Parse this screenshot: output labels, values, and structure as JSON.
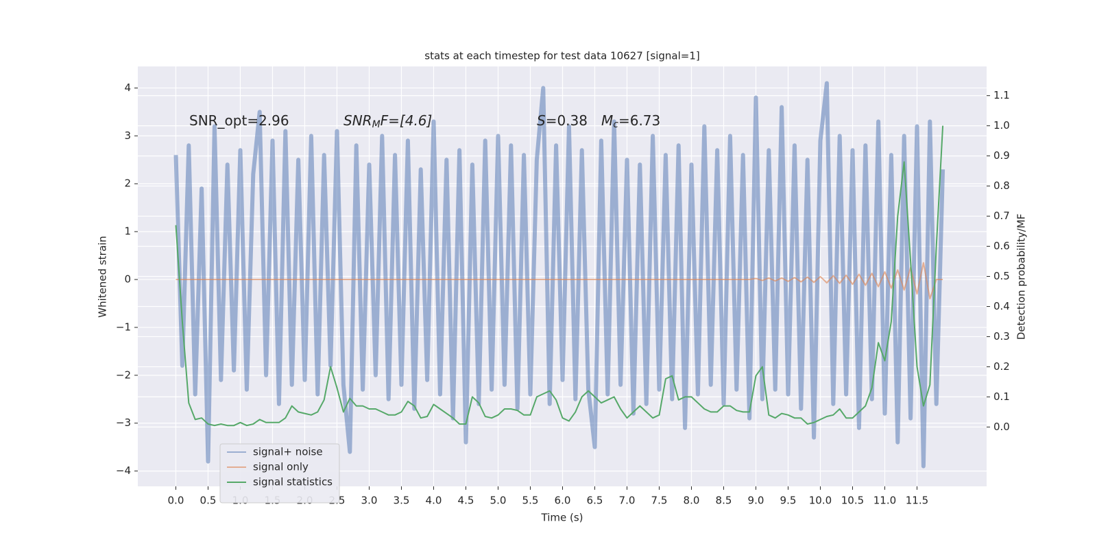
{
  "chart_data": {
    "type": "line",
    "title": "stats at each timestep for test data 10627 [signal=1]",
    "xlabel": "Time (s)",
    "ylabel": "Whitened strain",
    "y2label": "Detection probability/MF",
    "annotations": [
      {
        "text": "SNR_opt=2.96"
      },
      {
        "base": "SNR",
        "sub": "M",
        "rest": "F=[4.6]"
      },
      {
        "base": "S",
        "rest": "=0.38"
      },
      {
        "base": "M",
        "sub": "c",
        "rest": "=6.73"
      }
    ],
    "x": [
      0,
      0.1,
      0.2,
      0.3,
      0.4,
      0.5,
      0.6,
      0.7,
      0.8,
      0.9,
      1,
      1.1,
      1.2,
      1.3,
      1.4,
      1.5,
      1.6,
      1.7,
      1.8,
      1.9,
      2,
      2.1,
      2.2,
      2.3,
      2.4,
      2.5,
      2.6,
      2.7,
      2.8,
      2.9,
      3,
      3.1,
      3.2,
      3.3,
      3.4,
      3.5,
      3.6,
      3.7,
      3.8,
      3.9,
      4,
      4.1,
      4.2,
      4.3,
      4.4,
      4.5,
      4.6,
      4.7,
      4.8,
      4.9,
      5,
      5.1,
      5.2,
      5.3,
      5.4,
      5.5,
      5.6,
      5.7,
      5.8,
      5.9,
      6,
      6.1,
      6.2,
      6.3,
      6.4,
      6.5,
      6.6,
      6.7,
      6.8,
      6.9,
      7,
      7.1,
      7.2,
      7.3,
      7.4,
      7.5,
      7.6,
      7.7,
      7.8,
      7.9,
      8,
      8.1,
      8.2,
      8.3,
      8.4,
      8.5,
      8.6,
      8.7,
      8.8,
      8.9,
      9,
      9.1,
      9.2,
      9.3,
      9.4,
      9.5,
      9.6,
      9.7,
      9.8,
      9.9,
      10,
      10.1,
      10.2,
      10.3,
      10.4,
      10.5,
      10.6,
      10.7,
      10.8,
      10.9,
      11,
      11.1,
      11.2,
      11.3,
      11.4,
      11.5,
      11.6,
      11.7,
      11.8,
      11.9
    ],
    "series": [
      {
        "name": "signal+ noise",
        "color": "#4c72b0",
        "opacity": 0.5,
        "width": 6,
        "values": [
          2.6,
          -1.8,
          2.8,
          -2.4,
          1.9,
          -3.8,
          3.2,
          -2.1,
          2.4,
          -1.9,
          2.7,
          -2.3,
          2.2,
          3.5,
          -2.0,
          2.9,
          -2.6,
          3.1,
          -2.2,
          2.5,
          -2.1,
          3.0,
          -2.4,
          2.6,
          -1.8,
          3.1,
          -2.2,
          -3.6,
          2.8,
          -2.3,
          2.4,
          -2.0,
          3.0,
          -2.5,
          2.6,
          -2.2,
          2.9,
          -2.7,
          2.3,
          -2.1,
          3.3,
          -2.4,
          2.5,
          -2.9,
          2.7,
          -3.4,
          2.4,
          -2.6,
          2.9,
          -2.3,
          3.0,
          -2.2,
          2.8,
          -2.7,
          2.6,
          -2.4,
          2.5,
          4.0,
          -2.6,
          2.8,
          -2.1,
          3.2,
          -2.5,
          2.7,
          -2.3,
          -3.5,
          2.9,
          -2.4,
          3.3,
          -2.2,
          2.5,
          -2.8,
          2.4,
          -2.6,
          3.0,
          -2.3,
          2.6,
          -2.5,
          2.8,
          -3.1,
          2.4,
          -2.4,
          3.2,
          -2.2,
          2.7,
          -2.6,
          3.0,
          -2.3,
          2.6,
          -2.9,
          3.8,
          -2.5,
          2.7,
          -2.3,
          3.6,
          -2.4,
          2.8,
          -2.7,
          2.5,
          -3.3,
          2.9,
          4.1,
          -2.6,
          3.0,
          -2.4,
          2.7,
          -3.1,
          2.8,
          -2.5,
          3.3,
          -2.8,
          2.6,
          -3.4,
          3.0,
          -2.9,
          3.2,
          -3.9,
          3.3,
          -2.6,
          2.3
        ]
      },
      {
        "name": "signal only",
        "color": "#dd8452",
        "opacity": 0.6,
        "width": 2,
        "values": [
          0,
          0,
          0,
          0,
          0,
          0,
          0,
          0,
          0,
          0,
          0,
          0,
          0,
          0,
          0,
          0,
          0,
          0,
          0,
          0,
          0,
          0,
          0,
          0,
          0,
          0,
          0,
          0,
          0,
          0,
          0,
          0,
          0,
          0,
          0,
          0,
          0,
          0,
          0,
          0,
          0,
          0,
          0,
          0,
          0,
          0,
          0,
          0,
          0,
          0,
          0,
          0,
          0,
          0,
          0,
          0,
          0,
          0,
          0,
          0,
          0,
          0,
          0,
          0,
          0,
          0,
          0,
          0,
          0,
          0,
          0,
          0,
          0,
          0,
          0,
          0,
          0,
          0,
          0,
          0,
          0,
          0,
          0,
          0,
          0,
          0,
          0,
          0,
          0,
          0,
          0.02,
          -0.02,
          0.03,
          -0.03,
          0.03,
          -0.04,
          0.04,
          -0.05,
          0.05,
          -0.06,
          0.06,
          -0.07,
          0.08,
          -0.08,
          0.09,
          -0.1,
          0.11,
          -0.12,
          0.13,
          -0.15,
          0.16,
          -0.18,
          0.2,
          -0.22,
          0.25,
          -0.3,
          0.35,
          -0.4,
          0,
          0
        ]
      },
      {
        "name": "signal statistics",
        "color": "#55a868",
        "opacity": 1,
        "width": 2,
        "axis": "y2",
        "values": [
          0.67,
          0.35,
          0.08,
          0.025,
          0.03,
          0.01,
          0.005,
          0.01,
          0.005,
          0.005,
          0.015,
          0.005,
          0.01,
          0.025,
          0.015,
          0.015,
          0.015,
          0.03,
          0.07,
          0.05,
          0.045,
          0.04,
          0.05,
          0.09,
          0.2,
          0.13,
          0.05,
          0.095,
          0.07,
          0.07,
          0.06,
          0.06,
          0.05,
          0.04,
          0.04,
          0.05,
          0.085,
          0.07,
          0.03,
          0.035,
          0.075,
          0.06,
          0.045,
          0.03,
          0.01,
          0.01,
          0.1,
          0.08,
          0.035,
          0.03,
          0.04,
          0.06,
          0.06,
          0.055,
          0.04,
          0.04,
          0.1,
          0.11,
          0.12,
          0.09,
          0.03,
          0.02,
          0.05,
          0.1,
          0.12,
          0.1,
          0.08,
          0.09,
          0.1,
          0.06,
          0.03,
          0.05,
          0.07,
          0.05,
          0.03,
          0.04,
          0.16,
          0.17,
          0.09,
          0.1,
          0.1,
          0.08,
          0.06,
          0.05,
          0.05,
          0.07,
          0.07,
          0.055,
          0.05,
          0.05,
          0.17,
          0.2,
          0.04,
          0.03,
          0.045,
          0.04,
          0.03,
          0.03,
          0.01,
          0.015,
          0.025,
          0.035,
          0.04,
          0.06,
          0.03,
          0.03,
          0.05,
          0.07,
          0.13,
          0.28,
          0.22,
          0.35,
          0.7,
          0.88,
          0.55,
          0.2,
          0.07,
          0.14,
          0.6,
          1.0
        ]
      }
    ],
    "xlim": [
      -0.59,
      12.58
    ],
    "ylim": [
      -4.32,
      4.45
    ],
    "y2lim": [
      -0.197,
      1.197
    ],
    "xticks": [
      {
        "value": 0,
        "label": "0.0"
      },
      {
        "value": 0.5,
        "label": "0.5"
      },
      {
        "value": 1,
        "label": "1.0"
      },
      {
        "value": 1.5,
        "label": "1.5"
      },
      {
        "value": 2,
        "label": "2.0"
      },
      {
        "value": 2.5,
        "label": "2.5"
      },
      {
        "value": 3,
        "label": "3.0"
      },
      {
        "value": 3.5,
        "label": "3.5"
      },
      {
        "value": 4,
        "label": "4.0"
      },
      {
        "value": 4.5,
        "label": "4.5"
      },
      {
        "value": 5,
        "label": "5.0"
      },
      {
        "value": 5.5,
        "label": "5.5"
      },
      {
        "value": 6,
        "label": "6.0"
      },
      {
        "value": 6.5,
        "label": "6.5"
      },
      {
        "value": 7,
        "label": "7.0"
      },
      {
        "value": 7.5,
        "label": "7.5"
      },
      {
        "value": 8,
        "label": "8.0"
      },
      {
        "value": 8.5,
        "label": "8.5"
      },
      {
        "value": 9,
        "label": "9.0"
      },
      {
        "value": 9.5,
        "label": "9.5"
      },
      {
        "value": 10,
        "label": "10.0"
      },
      {
        "value": 10.5,
        "label": "10.5"
      },
      {
        "value": 11,
        "label": "11.0"
      },
      {
        "value": 11.5,
        "label": "11.5"
      }
    ],
    "yticks": [
      {
        "value": -4,
        "label": "−4"
      },
      {
        "value": -3,
        "label": "−3"
      },
      {
        "value": -2,
        "label": "−2"
      },
      {
        "value": -1,
        "label": "−1"
      },
      0,
      1,
      2,
      3,
      4
    ],
    "y2ticks": [
      {
        "value": 0,
        "label": "0.0"
      },
      {
        "value": 0.1,
        "label": "0.1"
      },
      {
        "value": 0.2,
        "label": "0.2"
      },
      {
        "value": 0.3,
        "label": "0.3"
      },
      {
        "value": 0.4,
        "label": "0.4"
      },
      {
        "value": 0.5,
        "label": "0.5"
      },
      {
        "value": 0.6,
        "label": "0.6"
      },
      {
        "value": 0.7,
        "label": "0.7"
      },
      {
        "value": 0.8,
        "label": "0.8"
      },
      {
        "value": 0.9,
        "label": "0.9"
      },
      {
        "value": 1,
        "label": "1.0"
      },
      {
        "value": 1.1,
        "label": "1.1"
      }
    ],
    "grid": true,
    "legend": "lower left",
    "background": "#eaeaf2"
  }
}
